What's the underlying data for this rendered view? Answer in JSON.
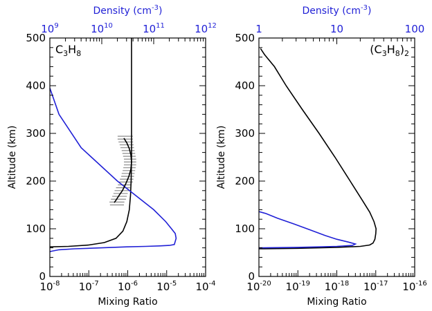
{
  "chart_data": [
    {
      "type": "line",
      "panel_label": {
        "base": "C",
        "sub1": "3",
        "mid": "H",
        "sub2": "8",
        "tail": ""
      },
      "xlabel": "Mixing Ratio",
      "ylabel": "Altitude (km)",
      "top_axis": {
        "label_base": "Density (cm",
        "label_exp": "-3",
        "label_close": ")",
        "scale": "log",
        "range": [
          1000000000.0,
          1000000000000.0
        ],
        "ticks": [
          {
            "mantissa": "10",
            "exp": "9"
          },
          {
            "mantissa": "10",
            "exp": "10"
          },
          {
            "mantissa": "10",
            "exp": "11"
          },
          {
            "mantissa": "10",
            "exp": "12"
          }
        ]
      },
      "xscale": "log",
      "xlim": [
        1e-08,
        0.0001
      ],
      "ylim": [
        0,
        500
      ],
      "xticks": [
        {
          "mantissa": "10",
          "exp": "-8"
        },
        {
          "mantissa": "10",
          "exp": "-7"
        },
        {
          "mantissa": "10",
          "exp": "-6"
        },
        {
          "mantissa": "10",
          "exp": "-5"
        },
        {
          "mantissa": "10",
          "exp": "-4"
        }
      ],
      "yticks": [
        "0",
        "100",
        "200",
        "300",
        "400",
        "500"
      ],
      "series": [
        {
          "color": "#000000",
          "axis": "bottom",
          "x": [
            1e-08,
            3e-08,
            1e-07,
            2.5e-07,
            5e-07,
            7.5e-07,
            9.5e-07,
            1.1e-06,
            1.18e-06,
            1.22e-06,
            1.25e-06,
            1.25e-06,
            1.25e-06
          ],
          "y": [
            62,
            63,
            66,
            71,
            80,
            95,
            115,
            140,
            170,
            200,
            250,
            350,
            500
          ]
        },
        {
          "color": "#1f1fd6",
          "axis": "top",
          "x": [
            1000000000.0,
            1100000000.0,
            1500000000.0,
            3000000000.0,
            10000000000.0,
            30000000000.0,
            70000000000.0,
            130000000000.0,
            200000000000.0,
            250000000000.0,
            270000000000.0,
            260000000000.0,
            220000000000.0,
            170000000000.0,
            100000000000.0,
            20000000000.0,
            4000000000.0,
            1500000000.0,
            1000000000.0
          ],
          "y": [
            52,
            53,
            56,
            58,
            60,
            62,
            63,
            64,
            65,
            67,
            80,
            90,
            100,
            115,
            140,
            200,
            270,
            340,
            395
          ]
        },
        {
          "color": "#000000",
          "axis": "bottom",
          "x": [
            4.5e-07,
            5e-07,
            6e-07,
            7.3e-07,
            9e-07,
            1.07e-06,
            1.2e-06,
            1.25e-06,
            1.2e-06,
            1.1e-06,
            9.5e-07,
            8e-07
          ],
          "y": [
            155,
            160,
            170,
            180,
            195,
            210,
            225,
            240,
            255,
            268,
            280,
            290
          ]
        }
      ],
      "error_bars": [
        {
          "y": 150,
          "x": 5e-07,
          "lo": 3.5e-07,
          "hi": 8e-07
        },
        {
          "y": 156,
          "x": 5e-07,
          "lo": 3.4e-07,
          "hi": 8.2e-07
        },
        {
          "y": 162,
          "x": 5.5e-07,
          "lo": 3.7e-07,
          "hi": 9e-07
        },
        {
          "y": 168,
          "x": 6e-07,
          "lo": 4e-07,
          "hi": 9.5e-07
        },
        {
          "y": 174,
          "x": 6.5e-07,
          "lo": 4.3e-07,
          "hi": 1e-06
        },
        {
          "y": 180,
          "x": 7e-07,
          "lo": 4.6e-07,
          "hi": 1.1e-06
        },
        {
          "y": 186,
          "x": 7.5e-07,
          "lo": 5e-07,
          "hi": 1.15e-06
        },
        {
          "y": 192,
          "x": 8.5e-07,
          "lo": 5.6e-07,
          "hi": 1.25e-06
        },
        {
          "y": 198,
          "x": 9e-07,
          "lo": 6e-07,
          "hi": 1.35e-06
        },
        {
          "y": 204,
          "x": 9.5e-07,
          "lo": 6.3e-07,
          "hi": 1.4e-06
        },
        {
          "y": 210,
          "x": 1e-06,
          "lo": 6.8e-07,
          "hi": 1.45e-06
        },
        {
          "y": 216,
          "x": 1.05e-06,
          "lo": 7e-07,
          "hi": 1.5e-06
        },
        {
          "y": 222,
          "x": 1.1e-06,
          "lo": 7.4e-07,
          "hi": 1.55e-06
        },
        {
          "y": 228,
          "x": 1.15e-06,
          "lo": 7.7e-07,
          "hi": 1.6e-06
        },
        {
          "y": 234,
          "x": 1.2e-06,
          "lo": 8e-07,
          "hi": 1.65e-06
        },
        {
          "y": 240,
          "x": 1.2e-06,
          "lo": 8e-07,
          "hi": 1.65e-06
        },
        {
          "y": 246,
          "x": 1.2e-06,
          "lo": 8e-07,
          "hi": 1.65e-06
        },
        {
          "y": 252,
          "x": 1.15e-06,
          "lo": 7.6e-07,
          "hi": 1.6e-06
        },
        {
          "y": 258,
          "x": 1.1e-06,
          "lo": 7.3e-07,
          "hi": 1.55e-06
        },
        {
          "y": 264,
          "x": 1.05e-06,
          "lo": 7e-07,
          "hi": 1.5e-06
        },
        {
          "y": 270,
          "x": 1e-06,
          "lo": 6.5e-07,
          "hi": 1.45e-06
        },
        {
          "y": 276,
          "x": 9.5e-07,
          "lo": 6.2e-07,
          "hi": 1.42e-06
        },
        {
          "y": 282,
          "x": 9e-07,
          "lo": 5.8e-07,
          "hi": 1.38e-06
        },
        {
          "y": 288,
          "x": 8.5e-07,
          "lo": 5.5e-07,
          "hi": 1.35e-06
        },
        {
          "y": 294,
          "x": 8.5e-07,
          "lo": 5.5e-07,
          "hi": 1.35e-06
        }
      ]
    },
    {
      "type": "line",
      "panel_label": {
        "base": "(C",
        "sub1": "3",
        "mid": "H",
        "sub2": "8",
        "tail": ")",
        "sub3": "2"
      },
      "xlabel": "Mixing Ratio",
      "ylabel": "Altitude (km)",
      "top_axis": {
        "label_base": "Density (cm",
        "label_exp": "-3",
        "label_close": ")",
        "scale": "log",
        "range": [
          1,
          100
        ],
        "ticks": [
          {
            "mantissa": "1",
            "exp": ""
          },
          {
            "mantissa": "10",
            "exp": ""
          },
          {
            "mantissa": "100",
            "exp": ""
          }
        ]
      },
      "xscale": "log",
      "xlim": [
        1e-20,
        1e-16
      ],
      "ylim": [
        0,
        500
      ],
      "xticks": [
        {
          "mantissa": "10",
          "exp": "-20"
        },
        {
          "mantissa": "10",
          "exp": "-19"
        },
        {
          "mantissa": "10",
          "exp": "-18"
        },
        {
          "mantissa": "10",
          "exp": "-17"
        },
        {
          "mantissa": "10",
          "exp": "-16"
        }
      ],
      "yticks": [
        "0",
        "100",
        "200",
        "300",
        "400",
        "500"
      ],
      "series": [
        {
          "color": "#000000",
          "axis": "bottom",
          "x": [
            1e-20,
            1e-19,
            1e-18,
            4e-18,
            7e-18,
            8.5e-18,
            9.5e-18,
            1e-17,
            1.02e-17,
            9e-18,
            7e-18,
            4.5e-18,
            2.2e-18,
            9e-19,
            3.5e-19,
            1.3e-19,
            5e-20,
            2.5e-20,
            1.4e-20,
            1.1e-20
          ],
          "y": [
            58,
            59,
            61,
            63,
            66,
            70,
            78,
            90,
            100,
            115,
            135,
            160,
            200,
            250,
            300,
            350,
            400,
            440,
            465,
            478
          ]
        },
        {
          "color": "#1f1fd6",
          "axis": "bottom",
          "x": [
            1e-20,
            1e-19,
            1e-18,
            2.5e-18,
            3e-18,
            2e-18,
            1e-18,
            5e-19,
            2e-19,
            8e-20,
            3e-20,
            1.5e-20,
            1e-20
          ],
          "y": [
            60,
            61,
            63,
            65,
            68,
            72,
            78,
            86,
            98,
            110,
            122,
            132,
            136
          ]
        }
      ]
    }
  ]
}
